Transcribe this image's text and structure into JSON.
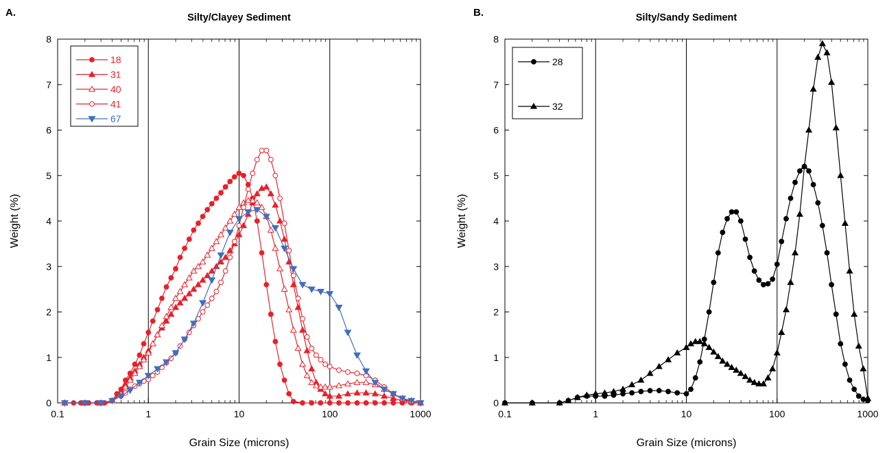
{
  "chart_data": [
    {
      "type": "line",
      "panel": "A.",
      "title": "Silty/Clayey Sediment",
      "xlabel": "Grain Size (microns)",
      "ylabel": "Weight (%)",
      "xscale": "log",
      "xlim": [
        0.1,
        1000
      ],
      "ylim": [
        0,
        8
      ],
      "xticks": [
        "0.1",
        "1",
        "10",
        "100",
        "1000"
      ],
      "yticks": [
        "0",
        "1",
        "2",
        "3",
        "4",
        "5",
        "6",
        "7",
        "8"
      ],
      "gridlines": "vertical at 1, 10, 100",
      "legend_position": "top-left",
      "series": [
        {
          "name": "18",
          "marker": "filled-circle",
          "color": "#e8202a",
          "x": [
            0.12,
            0.15,
            0.18,
            0.22,
            0.27,
            0.33,
            0.4,
            0.45,
            0.5,
            0.56,
            0.63,
            0.71,
            0.8,
            0.89,
            1.0,
            1.12,
            1.26,
            1.41,
            1.58,
            1.78,
            2.0,
            2.24,
            2.51,
            2.82,
            3.16,
            3.55,
            3.98,
            4.47,
            5.01,
            5.62,
            6.31,
            7.08,
            7.94,
            8.91,
            10.0,
            11.2,
            12.6,
            14.1,
            15.8,
            17.8,
            20.0,
            22.4,
            25.1,
            28.2,
            31.6,
            35.5,
            39.8,
            50,
            63,
            79,
            100,
            126,
            158,
            200,
            251,
            316,
            398,
            501,
            631,
            794,
            1000
          ],
          "y": [
            0,
            0,
            0,
            0,
            0,
            0,
            0.05,
            0.2,
            0.3,
            0.5,
            0.65,
            0.85,
            1.05,
            1.3,
            1.55,
            1.8,
            2.05,
            2.3,
            2.55,
            2.75,
            2.95,
            3.2,
            3.4,
            3.6,
            3.8,
            3.95,
            4.1,
            4.25,
            4.38,
            4.5,
            4.62,
            4.75,
            4.87,
            4.97,
            5.05,
            5.0,
            4.8,
            4.5,
            4.0,
            3.3,
            2.6,
            1.95,
            1.35,
            0.85,
            0.5,
            0.2,
            0.03,
            0,
            0,
            0,
            0,
            0,
            0,
            0,
            0,
            0,
            0,
            0,
            0,
            0,
            0
          ]
        },
        {
          "name": "31",
          "marker": "filled-triangle",
          "color": "#e8202a",
          "x": [
            0.12,
            0.2,
            0.3,
            0.4,
            0.5,
            0.56,
            0.63,
            0.71,
            0.8,
            0.89,
            1.0,
            1.12,
            1.26,
            1.41,
            1.58,
            1.78,
            2.0,
            2.24,
            2.51,
            2.82,
            3.16,
            3.55,
            3.98,
            4.47,
            5.01,
            5.62,
            6.31,
            7.08,
            7.94,
            8.91,
            10.0,
            11.2,
            12.6,
            14.1,
            15.8,
            17.8,
            20.0,
            22.4,
            25.1,
            28.2,
            31.6,
            35.5,
            39.8,
            44.7,
            50.1,
            56.2,
            63.1,
            70.8,
            79.4,
            89.1,
            100,
            126,
            158,
            200,
            251,
            316,
            398,
            501,
            631,
            794,
            1000
          ],
          "y": [
            0,
            0,
            0,
            0.05,
            0.25,
            0.4,
            0.55,
            0.7,
            0.85,
            1.0,
            1.15,
            1.3,
            1.5,
            1.65,
            1.8,
            1.95,
            2.1,
            2.2,
            2.3,
            2.4,
            2.5,
            2.6,
            2.7,
            2.8,
            2.9,
            3.0,
            3.1,
            3.2,
            3.35,
            3.5,
            3.7,
            3.9,
            4.15,
            4.4,
            4.6,
            4.72,
            4.75,
            4.6,
            4.35,
            4.0,
            3.6,
            3.1,
            2.6,
            2.1,
            1.6,
            1.15,
            0.75,
            0.45,
            0.3,
            0.2,
            0.15,
            0.15,
            0.2,
            0.22,
            0.22,
            0.2,
            0.15,
            0.1,
            0.05,
            0.02,
            0
          ]
        },
        {
          "name": "40",
          "marker": "open-triangle",
          "color": "#e8202a",
          "x": [
            0.12,
            0.2,
            0.3,
            0.4,
            0.5,
            0.56,
            0.63,
            0.71,
            0.8,
            0.89,
            1.0,
            1.12,
            1.26,
            1.41,
            1.58,
            1.78,
            2.0,
            2.24,
            2.51,
            2.82,
            3.16,
            3.55,
            3.98,
            4.47,
            5.01,
            5.62,
            6.31,
            7.08,
            7.94,
            8.91,
            10.0,
            11.2,
            12.6,
            14.1,
            15.8,
            17.8,
            20.0,
            22.4,
            25.1,
            28.2,
            31.6,
            35.5,
            39.8,
            44.7,
            50.1,
            56.2,
            63.1,
            70.8,
            79.4,
            89.1,
            100,
            126,
            158,
            200,
            251,
            316,
            398,
            501,
            631,
            794,
            1000
          ],
          "y": [
            0,
            0,
            0,
            0.05,
            0.2,
            0.35,
            0.5,
            0.65,
            0.8,
            0.95,
            1.1,
            1.3,
            1.5,
            1.7,
            1.9,
            2.1,
            2.3,
            2.45,
            2.6,
            2.75,
            2.9,
            3.0,
            3.1,
            3.25,
            3.4,
            3.55,
            3.7,
            3.85,
            4.0,
            4.15,
            4.3,
            4.4,
            4.45,
            4.45,
            4.4,
            4.3,
            4.1,
            3.8,
            3.4,
            2.95,
            2.5,
            2.05,
            1.6,
            1.2,
            0.85,
            0.6,
            0.45,
            0.38,
            0.35,
            0.35,
            0.35,
            0.38,
            0.42,
            0.45,
            0.45,
            0.4,
            0.3,
            0.2,
            0.1,
            0.05,
            0
          ]
        },
        {
          "name": "41",
          "marker": "open-circle",
          "color": "#e8202a",
          "x": [
            0.12,
            0.2,
            0.3,
            0.4,
            0.5,
            0.56,
            0.63,
            0.71,
            0.8,
            0.89,
            1.0,
            1.12,
            1.26,
            1.41,
            1.58,
            1.78,
            2.0,
            2.24,
            2.51,
            2.82,
            3.16,
            3.55,
            3.98,
            4.47,
            5.01,
            5.62,
            6.31,
            7.08,
            7.94,
            8.91,
            10.0,
            11.2,
            12.6,
            14.1,
            15.8,
            17.8,
            20.0,
            22.4,
            25.1,
            28.2,
            31.6,
            35.5,
            39.8,
            44.7,
            50.1,
            56.2,
            63.1,
            70.8,
            79.4,
            89.1,
            100,
            126,
            158,
            200,
            251,
            316,
            398,
            501,
            631,
            794,
            1000
          ],
          "y": [
            0,
            0,
            0,
            0.05,
            0.15,
            0.22,
            0.3,
            0.37,
            0.42,
            0.48,
            0.52,
            0.6,
            0.68,
            0.78,
            0.88,
            0.98,
            1.1,
            1.25,
            1.4,
            1.55,
            1.7,
            1.85,
            2.0,
            2.15,
            2.3,
            2.45,
            2.65,
            2.9,
            3.2,
            3.55,
            3.9,
            4.3,
            4.7,
            5.05,
            5.35,
            5.55,
            5.55,
            5.35,
            5.0,
            4.5,
            3.95,
            3.35,
            2.8,
            2.3,
            1.85,
            1.45,
            1.2,
            1.05,
            0.95,
            0.85,
            0.8,
            0.72,
            0.68,
            0.65,
            0.6,
            0.5,
            0.35,
            0.2,
            0.08,
            0.03,
            0
          ]
        },
        {
          "name": "67",
          "marker": "filled-inverted-triangle",
          "color": "#3f6fbf",
          "x": [
            0.12,
            0.2,
            0.3,
            0.4,
            0.5,
            0.63,
            0.8,
            1.0,
            1.26,
            1.58,
            2.0,
            2.51,
            3.16,
            3.98,
            5.01,
            6.31,
            7.94,
            10.0,
            12.6,
            15.8,
            20.0,
            25.1,
            31.6,
            39.8,
            50.1,
            63.1,
            79.4,
            100,
            126,
            158,
            200,
            251,
            316,
            398,
            501,
            631,
            794,
            1000
          ],
          "y": [
            0,
            0,
            0,
            0.05,
            0.15,
            0.28,
            0.45,
            0.6,
            0.75,
            0.9,
            1.1,
            1.4,
            1.75,
            2.2,
            2.7,
            3.25,
            3.75,
            4.05,
            4.2,
            4.25,
            4.1,
            3.85,
            3.4,
            2.95,
            2.6,
            2.5,
            2.45,
            2.4,
            2.1,
            1.55,
            1.05,
            0.7,
            0.45,
            0.3,
            0.2,
            0.1,
            0.05,
            0
          ]
        }
      ]
    },
    {
      "type": "line",
      "panel": "B.",
      "title": "Silty/Sandy Sediment",
      "xlabel": "Grain Size (microns)",
      "ylabel": "Weight (%)",
      "xscale": "log",
      "xlim": [
        0.1,
        1000
      ],
      "ylim": [
        0,
        8
      ],
      "xticks": [
        "0.1",
        "1",
        "10",
        "100",
        "1000"
      ],
      "yticks": [
        "0",
        "1",
        "2",
        "3",
        "4",
        "5",
        "6",
        "7",
        "8"
      ],
      "gridlines": "vertical at 1, 10, 100",
      "legend_position": "top-left",
      "series": [
        {
          "name": "28",
          "marker": "filled-circle",
          "color": "#000000",
          "x": [
            0.1,
            0.2,
            0.4,
            0.5,
            0.63,
            0.8,
            1.0,
            1.26,
            1.58,
            2.0,
            2.51,
            3.16,
            3.98,
            5.01,
            6.31,
            7.94,
            10.0,
            11.2,
            12.6,
            14.1,
            15.8,
            17.8,
            20.0,
            22.4,
            25.1,
            28.2,
            31.6,
            35.5,
            39.8,
            44.7,
            50.1,
            56.2,
            63.1,
            70.8,
            79.4,
            89.1,
            100,
            112,
            126,
            141,
            158,
            178,
            200,
            224,
            251,
            282,
            316,
            355,
            398,
            447,
            501,
            562,
            631,
            708,
            794,
            891,
            1000
          ],
          "y": [
            0,
            0,
            0,
            0.05,
            0.12,
            0.15,
            0.15,
            0.15,
            0.17,
            0.2,
            0.22,
            0.25,
            0.27,
            0.27,
            0.25,
            0.22,
            0.2,
            0.3,
            0.55,
            0.9,
            1.4,
            2.0,
            2.65,
            3.3,
            3.75,
            4.05,
            4.2,
            4.2,
            4.0,
            3.6,
            3.2,
            2.9,
            2.7,
            2.6,
            2.62,
            2.72,
            3.05,
            3.55,
            4.05,
            4.5,
            4.85,
            5.1,
            5.2,
            5.1,
            4.8,
            4.4,
            3.9,
            3.3,
            2.6,
            1.95,
            1.3,
            0.85,
            0.5,
            0.3,
            0.15,
            0.08,
            0.05
          ]
        },
        {
          "name": "32",
          "marker": "filled-triangle",
          "color": "#000000",
          "x": [
            0.1,
            0.2,
            0.4,
            0.5,
            0.63,
            0.8,
            1.0,
            1.26,
            1.58,
            2.0,
            2.51,
            3.16,
            3.98,
            5.01,
            6.31,
            7.94,
            10.0,
            11.2,
            12.6,
            14.1,
            15.8,
            17.8,
            20.0,
            22.4,
            25.1,
            28.2,
            31.6,
            35.5,
            39.8,
            44.7,
            50.1,
            56.2,
            63.1,
            70.8,
            79.4,
            89.1,
            100,
            112,
            126,
            141,
            158,
            178,
            200,
            224,
            251,
            282,
            316,
            355,
            398,
            447,
            501,
            562,
            631,
            708,
            794,
            891,
            1000
          ],
          "y": [
            0,
            0,
            0,
            0.05,
            0.12,
            0.17,
            0.2,
            0.22,
            0.25,
            0.3,
            0.4,
            0.5,
            0.65,
            0.8,
            0.95,
            1.1,
            1.22,
            1.3,
            1.35,
            1.35,
            1.3,
            1.22,
            1.12,
            1.02,
            0.92,
            0.85,
            0.78,
            0.72,
            0.65,
            0.58,
            0.5,
            0.45,
            0.42,
            0.42,
            0.55,
            0.75,
            1.1,
            1.55,
            2.05,
            2.65,
            3.3,
            4.15,
            5.2,
            6.0,
            6.9,
            7.6,
            7.9,
            7.7,
            7.05,
            6.05,
            5.0,
            3.95,
            2.9,
            1.95,
            1.25,
            0.75,
            0.1
          ]
        }
      ]
    }
  ]
}
